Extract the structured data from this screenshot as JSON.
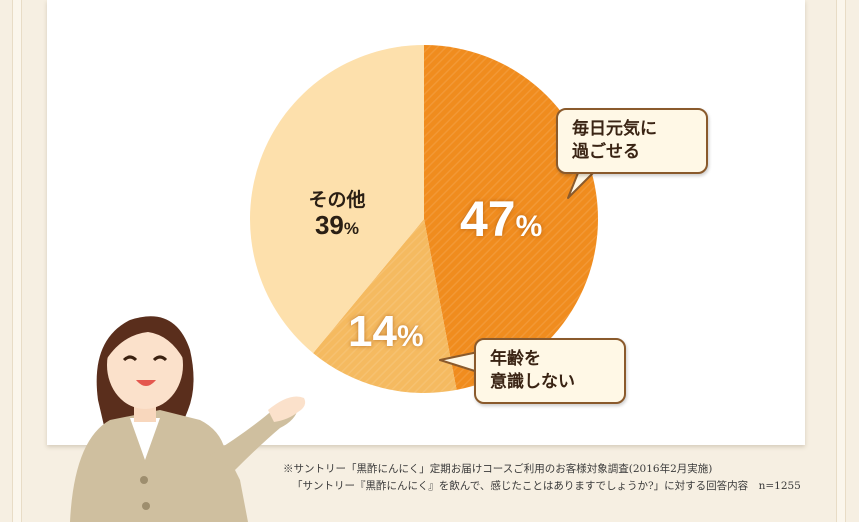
{
  "chart_data": {
    "type": "pie",
    "slices": [
      {
        "label": "毎日元気に過ごせる",
        "value": 47,
        "color": "#f08c1e"
      },
      {
        "label": "年齢を意識しない",
        "value": 14,
        "color": "#f5ba60"
      },
      {
        "label": "その他",
        "value": 39,
        "color": "#fde0ac"
      }
    ],
    "unit": "%"
  },
  "labels": {
    "slice1_value": "47",
    "slice2_value": "14",
    "other_name": "その他",
    "other_value": "39",
    "percent": "%",
    "callout1_line1": "毎日元気に",
    "callout1_line2": "過ごせる",
    "callout2_line1": "年齢を",
    "callout2_line2": "意識しない"
  },
  "footnote": {
    "line1": "※サントリー「黒酢にんにく」定期お届けコースご利用のお客様対象調査(2016年2月実施)",
    "line2": "「サントリー『黒酢にんにく』を飲んで、感じたことはありますでしょうか?」に対する回答内容　n=1255"
  },
  "colors": {
    "border": "#8a5a2c",
    "callout_bg": "#fff8e6",
    "background": "#f6efe2"
  }
}
